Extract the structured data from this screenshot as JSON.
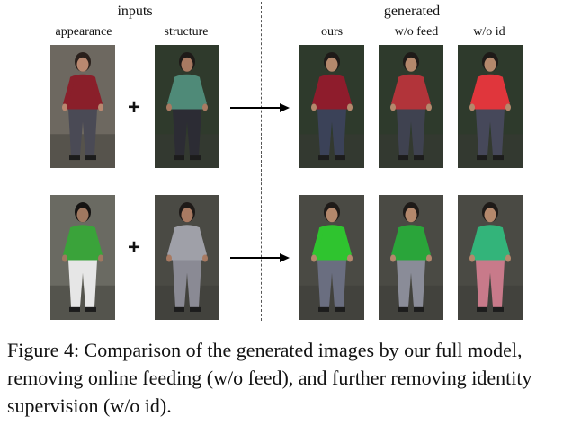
{
  "header": {
    "inputs_label": "inputs",
    "generated_label": "generated",
    "col_appearance": "appearance",
    "col_structure": "structure",
    "col_ours": "ours",
    "col_wo_feed": "w/o feed",
    "col_wo_id": "w/o id"
  },
  "plus_sign": "+",
  "rows": [
    {
      "appearance": {
        "shirt": "#8a1f2a",
        "pants": "#4a4a55",
        "bg": "#6d6860",
        "hair": "#2a201c",
        "skin": "#b98870"
      },
      "structure": {
        "shirt": "#4f8a78",
        "pants": "#2c2c34",
        "bg": "#2f3a2c",
        "hair": "#1e1a18",
        "skin": "#a87a62"
      },
      "ours": {
        "shirt": "#8e1c2c",
        "pants": "#3b4258",
        "bg": "#2e3a2c",
        "hair": "#1e1a18",
        "skin": "#b4886c"
      },
      "wo_feed": {
        "shirt": "#b2343a",
        "pants": "#3f4250",
        "bg": "#2e3a2c",
        "hair": "#1e1a18",
        "skin": "#b4886c"
      },
      "wo_id": {
        "shirt": "#e0363c",
        "pants": "#46485a",
        "bg": "#2e3a2c",
        "hair": "#1e1a18",
        "skin": "#b4886c"
      }
    },
    {
      "appearance": {
        "shirt": "#3aa33a",
        "pants": "#e6e6e6",
        "bg": "#6a6a62",
        "hair": "#151312",
        "skin": "#a07860"
      },
      "structure": {
        "shirt": "#9fa0a8",
        "pants": "#8a8a94",
        "bg": "#4a4a44",
        "hair": "#1e1a18",
        "skin": "#a87a62"
      },
      "ours": {
        "shirt": "#2fc42f",
        "pants": "#6a6e80",
        "bg": "#4a4a44",
        "hair": "#1e1a18",
        "skin": "#b4886c"
      },
      "wo_feed": {
        "shirt": "#2aa53a",
        "pants": "#8a8c98",
        "bg": "#4a4a44",
        "hair": "#1e1a18",
        "skin": "#b4886c"
      },
      "wo_id": {
        "shirt": "#33b47a",
        "pants": "#c87a8a",
        "bg": "#4a4a44",
        "hair": "#1e1a18",
        "skin": "#b4886c"
      }
    }
  ],
  "caption": "Figure 4: Comparison of the generated images by our full model, removing online feeding (w/o feed), and further removing identity supervision (w/o id)."
}
